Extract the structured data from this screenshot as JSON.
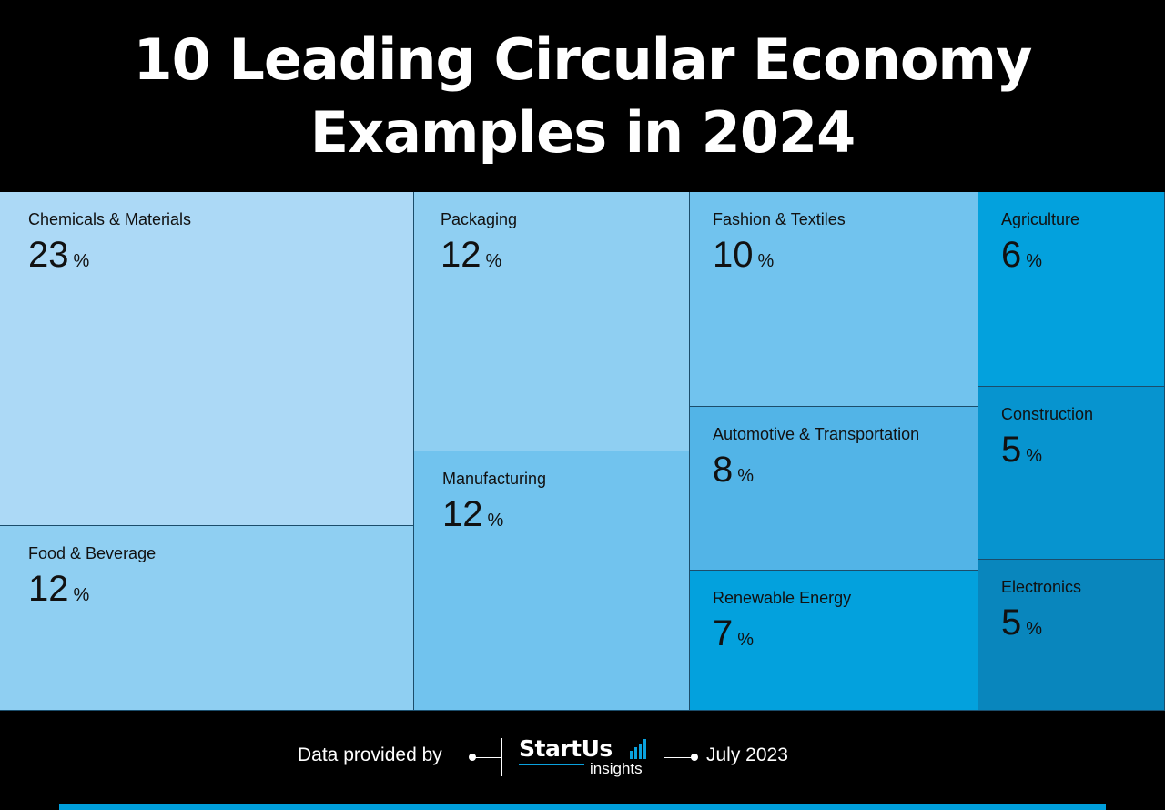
{
  "title": {
    "line1": "10 Leading Circular Economy",
    "line2": "Examples in 2024"
  },
  "chart_data": {
    "type": "treemap",
    "title": "10 Leading Circular Economy Examples in 2024",
    "unit": "%",
    "categories": [
      "Chemicals & Materials",
      "Food & Beverage",
      "Packaging",
      "Manufacturing",
      "Fashion & Textiles",
      "Automotive & Transportation",
      "Renewable Energy",
      "Agriculture",
      "Construction",
      "Electronics"
    ],
    "values": [
      23,
      12,
      12,
      12,
      10,
      8,
      7,
      6,
      5,
      5
    ],
    "items": [
      {
        "label": "Chemicals & Materials",
        "value": 23,
        "color": "#acd9f6"
      },
      {
        "label": "Food & Beverage",
        "value": 12,
        "color": "#8fcff2"
      },
      {
        "label": "Packaging",
        "value": 12,
        "color": "#8fcff2"
      },
      {
        "label": "Manufacturing",
        "value": 12,
        "color": "#71c3ee"
      },
      {
        "label": "Fashion & Textiles",
        "value": 10,
        "color": "#71c3ee"
      },
      {
        "label": "Automotive & Transportation",
        "value": 8,
        "color": "#52b4e7"
      },
      {
        "label": "Renewable Energy",
        "value": 7,
        "color": "#03a1dd"
      },
      {
        "label": "Agriculture",
        "value": 6,
        "color": "#03a1dd"
      },
      {
        "label": "Construction",
        "value": 5,
        "color": "#0794cf"
      },
      {
        "label": "Electronics",
        "value": 5,
        "color": "#0986bd"
      }
    ]
  },
  "footer": {
    "provided_by": "Data provided by",
    "brand_name": "StartUs",
    "brand_sub": "insights",
    "date": "July 2023"
  },
  "colors": {
    "background": "#000000",
    "accent": "#009fdc"
  }
}
